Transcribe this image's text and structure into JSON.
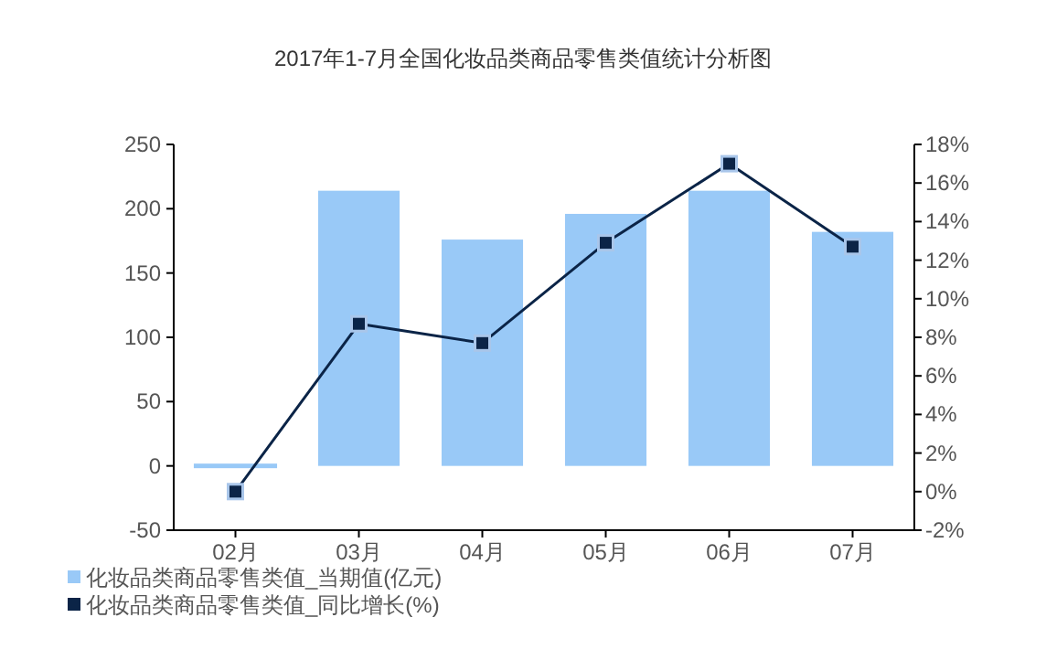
{
  "chart_data": {
    "type": "bar",
    "title": "2017年1-7月全国化妆品类商品零售类值统计分析图",
    "categories": [
      "02月",
      "03月",
      "04月",
      "05月",
      "06月",
      "07月"
    ],
    "series": [
      {
        "name": "化妆品类商品零售类值_当期值(亿元)",
        "color": "#99c9f7",
        "values": [
          0,
          214,
          176,
          196,
          214,
          182
        ]
      },
      {
        "name": "化妆品类商品零售类值_同比增长(%)",
        "color": "#0b2447",
        "type": "line",
        "axis": "y2",
        "marker": "square",
        "values": [
          0,
          8.7,
          7.7,
          12.9,
          17.0,
          12.7
        ]
      }
    ],
    "ylim": [
      -50,
      250
    ],
    "yticks": [
      -50,
      0,
      50,
      100,
      150,
      200,
      250
    ],
    "y2lim": [
      -2,
      18
    ],
    "y2ticks": [
      {
        "value": -2,
        "label": "-2%"
      },
      {
        "value": 0,
        "label": "0%"
      },
      {
        "value": 2,
        "label": "2%"
      },
      {
        "value": 4,
        "label": "4%"
      },
      {
        "value": 6,
        "label": "6%"
      },
      {
        "value": 8,
        "label": "8%"
      },
      {
        "value": 10,
        "label": "10%"
      },
      {
        "value": 12,
        "label": "12%"
      },
      {
        "value": 14,
        "label": "14%"
      },
      {
        "value": 16,
        "label": "16%"
      },
      {
        "value": 18,
        "label": "18%"
      }
    ],
    "legend": "bottom left",
    "grid": false
  }
}
